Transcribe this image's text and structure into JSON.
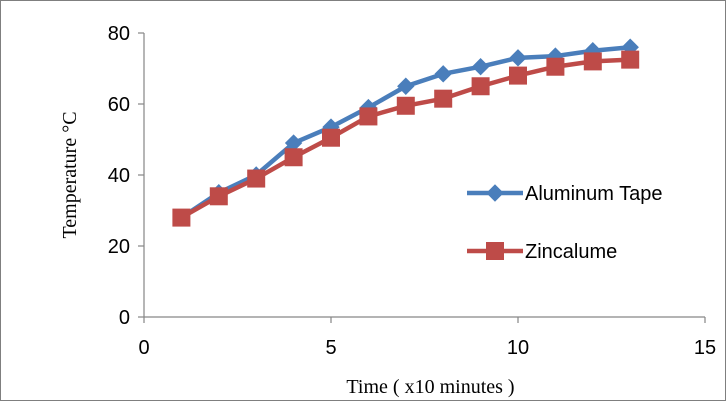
{
  "chart_data": {
    "type": "line",
    "title": "",
    "xlabel": "Time ( x10 minutes )",
    "ylabel": "Temperature  °C",
    "xlim": [
      0,
      15
    ],
    "ylim": [
      0,
      80
    ],
    "xticks": [
      0,
      5,
      10,
      15
    ],
    "yticks": [
      0,
      20,
      40,
      60,
      80
    ],
    "grid": false,
    "legend_position": "right",
    "x": [
      1,
      2,
      3,
      4,
      5,
      6,
      7,
      8,
      9,
      10,
      11,
      12,
      13
    ],
    "series": [
      {
        "name": "Aluminum Tape",
        "color": "#4a7ebb",
        "marker": "diamond",
        "values": [
          28,
          35,
          40,
          49,
          53.5,
          59,
          65,
          68.5,
          70.5,
          73,
          73.5,
          75,
          76
        ]
      },
      {
        "name": "Zincalume",
        "color": "#be4b48",
        "marker": "square",
        "values": [
          28,
          34,
          39,
          45,
          50.5,
          56.5,
          59.5,
          61.5,
          65,
          68,
          70.5,
          72,
          72.5
        ]
      }
    ]
  }
}
